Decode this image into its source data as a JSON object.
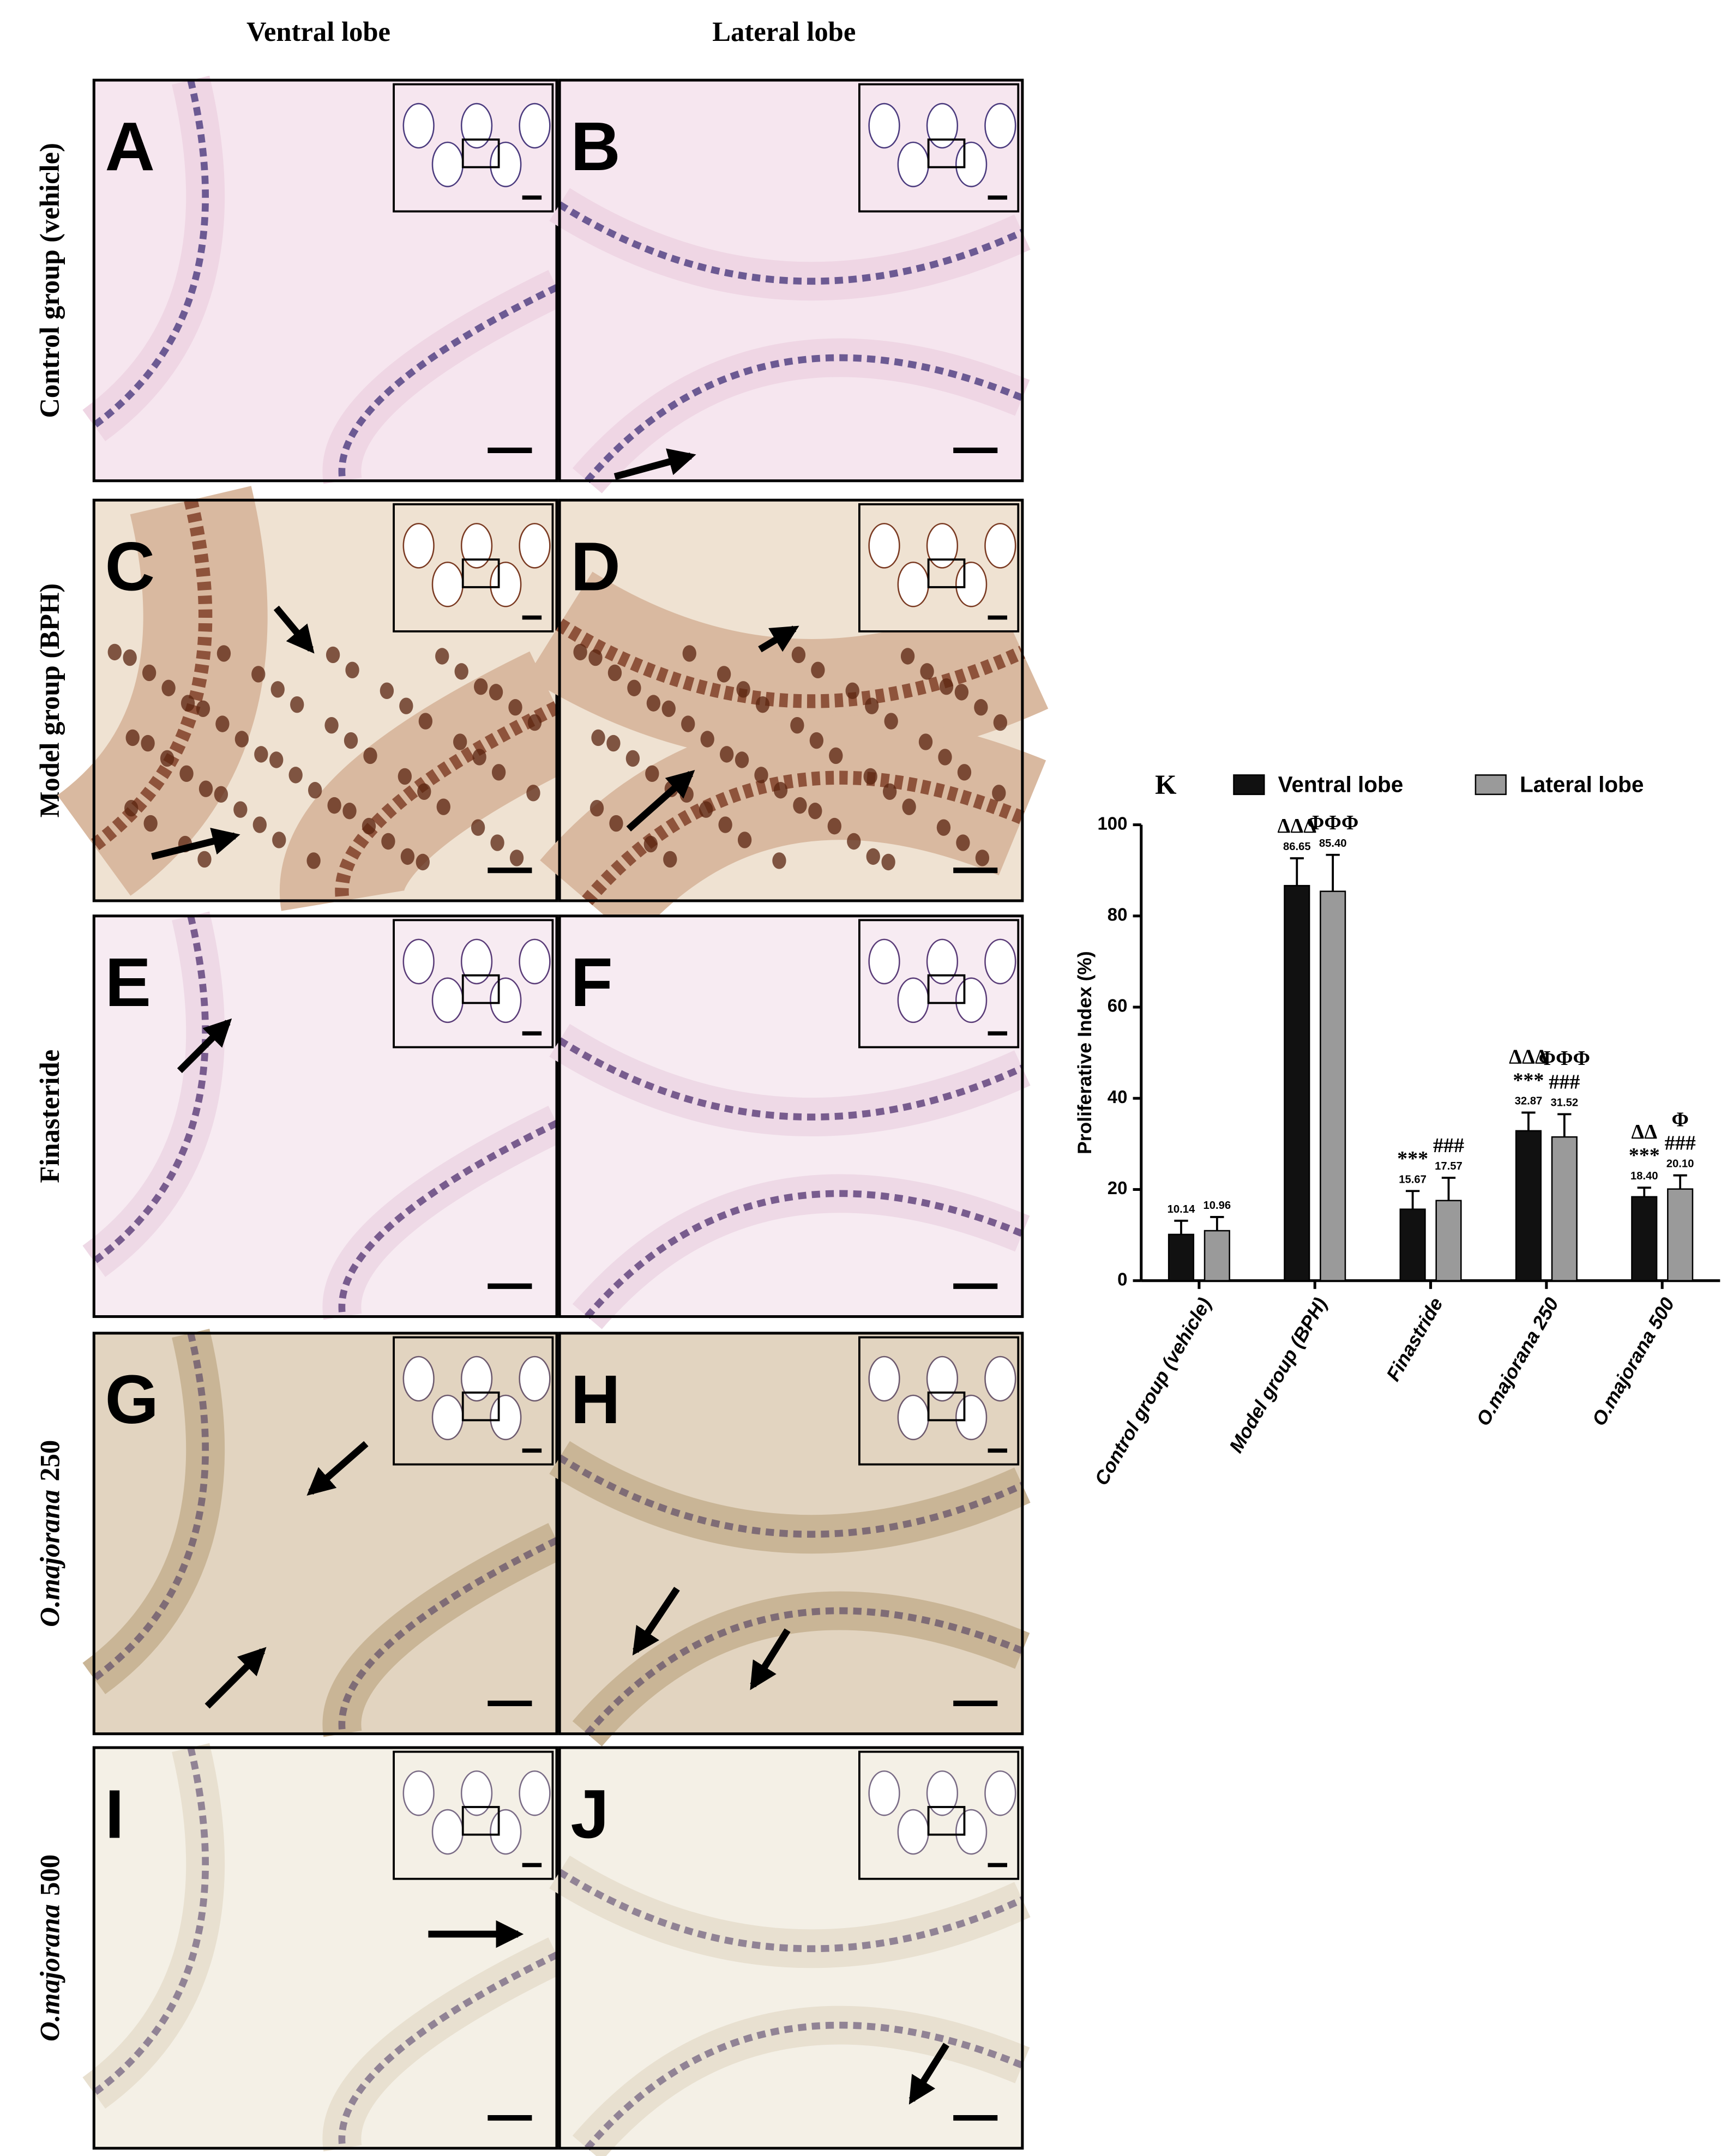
{
  "figure": {
    "column_labels": [
      "Ventral lobe",
      "Lateral lobe"
    ],
    "row_labels": [
      "Control group (vehicle)",
      "Model group (BPH)",
      "Finasteride",
      {
        "italic": "O.majorana",
        "plain": "250"
      },
      {
        "italic": "O.majorana",
        "plain": "500"
      }
    ],
    "panels": [
      "A",
      "B",
      "C",
      "D",
      "E",
      "F",
      "G",
      "H",
      "I",
      "J"
    ]
  },
  "chart_data": {
    "type": "bar",
    "panel_label": "K",
    "y_label": "Proliferative Index (%)",
    "categories": [
      "Control group (vehicle)",
      "Model group (BPH)",
      "Finastride",
      "O.majorana 250",
      "O.majorana 500"
    ],
    "series": [
      {
        "name": "Ventral lobe",
        "color": "#111111",
        "values": [
          10.14,
          86.65,
          15.67,
          32.87,
          18.4
        ],
        "value_labels": [
          "10.14",
          "86.65",
          "15.67",
          "32.87",
          "18.40"
        ],
        "errors": [
          3,
          6,
          4,
          4,
          2
        ],
        "annotations": [
          null,
          [
            "ΔΔΔ"
          ],
          [
            "***"
          ],
          [
            "ΔΔΔ",
            "***"
          ],
          [
            "ΔΔ",
            "***"
          ]
        ]
      },
      {
        "name": "Lateral lobe",
        "color": "#9a9a9a",
        "values": [
          10.96,
          85.4,
          17.57,
          31.52,
          20.1
        ],
        "value_labels": [
          "10.96",
          "85.40",
          "17.57",
          "31.52",
          "20.10"
        ],
        "errors": [
          3,
          8,
          5,
          5,
          3
        ],
        "annotations": [
          null,
          [
            "ΦΦΦ"
          ],
          [
            "###"
          ],
          [
            "ΦΦΦ",
            "###"
          ],
          [
            "Φ",
            "###"
          ]
        ]
      }
    ],
    "ylim": [
      0,
      100
    ],
    "yticks": [
      0,
      20,
      40,
      60,
      80,
      100
    ],
    "legend": "top"
  }
}
